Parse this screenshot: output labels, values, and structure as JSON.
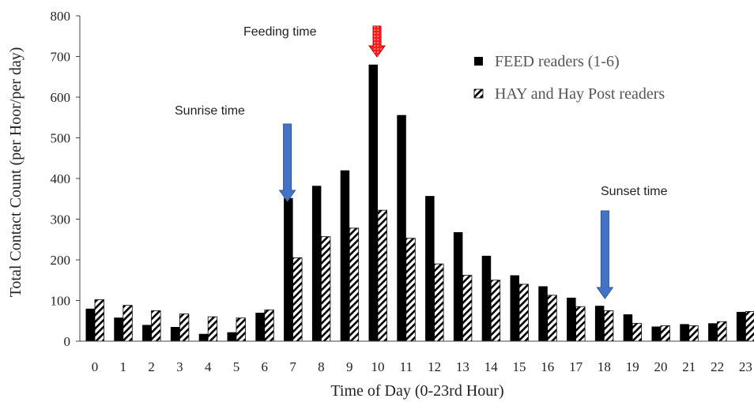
{
  "chart_data": {
    "type": "bar",
    "title": "",
    "xlabel": "Time of Day (0-23rd Hour)",
    "ylabel": "Total Contact Count (per Hoor/per day)",
    "ylim": [
      0,
      800
    ],
    "yticks": [
      0,
      100,
      200,
      300,
      400,
      500,
      600,
      700,
      800
    ],
    "grid": false,
    "legend_position": "top-right",
    "categories": [
      "0",
      "1",
      "2",
      "3",
      "4",
      "5",
      "6",
      "7",
      "8",
      "9",
      "10",
      "11",
      "12",
      "13",
      "14",
      "15",
      "16",
      "17",
      "18",
      "19",
      "20",
      "21",
      "22",
      "23"
    ],
    "series": [
      {
        "name": "FEED readers (1-6)",
        "color": "#000000",
        "pattern": "solid",
        "values": [
          80,
          58,
          40,
          35,
          18,
          22,
          70,
          352,
          382,
          420,
          680,
          556,
          357,
          268,
          210,
          162,
          135,
          107,
          87,
          66,
          36,
          42,
          44,
          72
        ]
      },
      {
        "name": "HAY and Hay Post readers",
        "color": "#000000",
        "pattern": "diagonal-hatch",
        "values": [
          102,
          88,
          75,
          67,
          60,
          57,
          77,
          205,
          257,
          278,
          322,
          253,
          190,
          162,
          150,
          140,
          113,
          85,
          75,
          44,
          38,
          38,
          48,
          73
        ]
      }
    ],
    "annotations": [
      {
        "text": "Feeding time",
        "category": "10",
        "arrow_color": "#ff2a2a",
        "arrow_pattern": "dotted-red",
        "direction": "down"
      },
      {
        "text": "Sunrise time",
        "category": "7",
        "arrow_color": "#4472c4",
        "direction": "down"
      },
      {
        "text": "Sunset time",
        "category": "18",
        "arrow_color": "#4472c4",
        "direction": "down"
      }
    ]
  }
}
